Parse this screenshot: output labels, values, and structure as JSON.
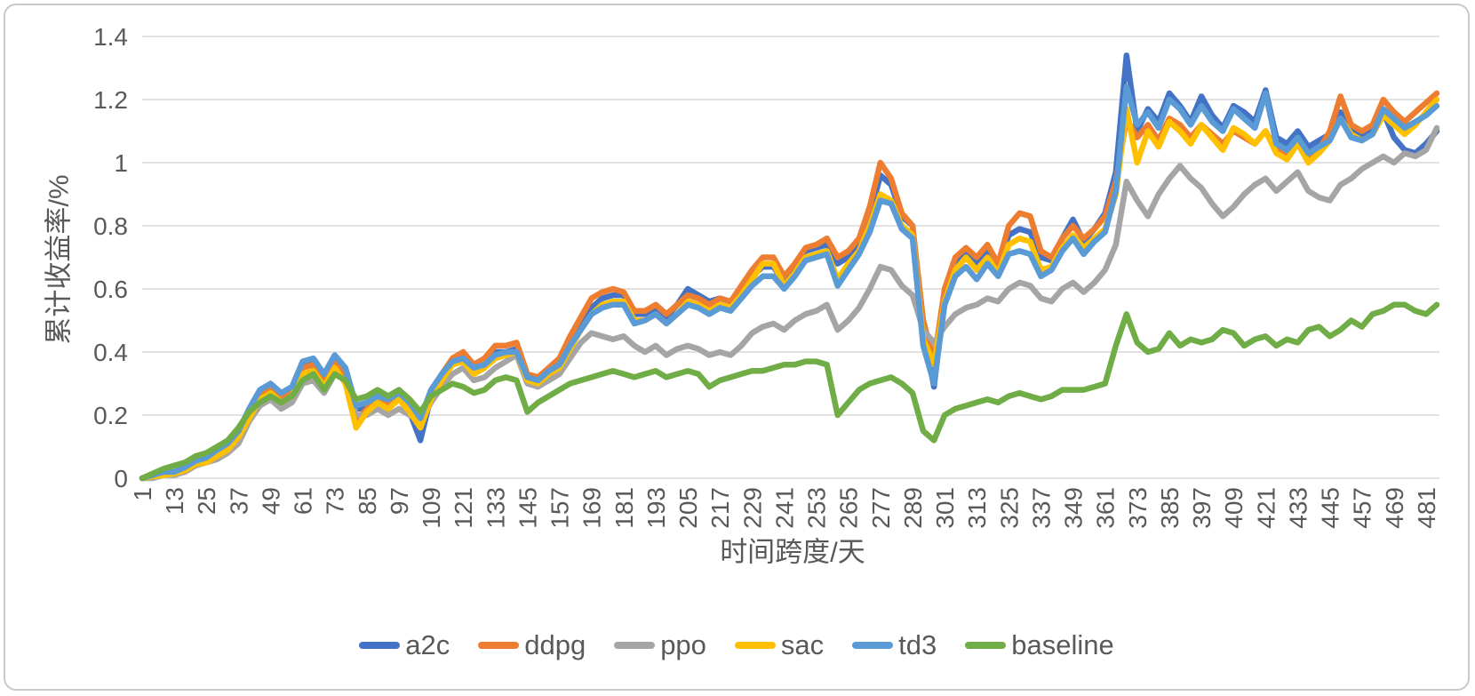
{
  "chart_data": {
    "type": "line",
    "title": "",
    "xlabel": "时间跨度/天",
    "ylabel": "累计收益率/%",
    "grid": true,
    "legend_position": "bottom",
    "text_color": "#595959",
    "grid_color": "#D9D9D9",
    "ylim": [
      0,
      1.4
    ],
    "xlim": [
      1,
      486
    ],
    "y_ticks": [
      {
        "value": 0,
        "label": "0"
      },
      {
        "value": 0.2,
        "label": "0.2"
      },
      {
        "value": 0.4,
        "label": "0.4"
      },
      {
        "value": 0.6,
        "label": "0.6"
      },
      {
        "value": 0.8,
        "label": "0.8"
      },
      {
        "value": 1,
        "label": "1"
      },
      {
        "value": 1.2,
        "label": "1.2"
      },
      {
        "value": 1.4,
        "label": "1.4"
      }
    ],
    "x_ticks": [
      1,
      13,
      25,
      37,
      49,
      61,
      73,
      85,
      97,
      109,
      121,
      133,
      145,
      157,
      169,
      181,
      193,
      205,
      217,
      229,
      241,
      253,
      265,
      277,
      289,
      301,
      313,
      325,
      337,
      349,
      361,
      373,
      385,
      397,
      409,
      421,
      433,
      445,
      457,
      469,
      481
    ],
    "x_start": 1,
    "x_step": 4,
    "series": [
      {
        "name": "a2c",
        "color": "#4472C4",
        "values": [
          0,
          0.005,
          0.01,
          0.015,
          0.03,
          0.045,
          0.05,
          0.07,
          0.1,
          0.13,
          0.2,
          0.27,
          0.28,
          0.25,
          0.28,
          0.36,
          0.37,
          0.31,
          0.38,
          0.34,
          0.22,
          0.22,
          0.25,
          0.23,
          0.26,
          0.21,
          0.12,
          0.26,
          0.32,
          0.37,
          0.38,
          0.34,
          0.36,
          0.4,
          0.4,
          0.41,
          0.32,
          0.31,
          0.34,
          0.36,
          0.42,
          0.48,
          0.54,
          0.57,
          0.58,
          0.58,
          0.52,
          0.52,
          0.54,
          0.51,
          0.55,
          0.6,
          0.58,
          0.56,
          0.57,
          0.56,
          0.6,
          0.64,
          0.67,
          0.67,
          0.62,
          0.67,
          0.72,
          0.73,
          0.74,
          0.68,
          0.7,
          0.74,
          0.83,
          0.96,
          0.93,
          0.83,
          0.8,
          0.47,
          0.29,
          0.57,
          0.68,
          0.71,
          0.68,
          0.72,
          0.67,
          0.77,
          0.79,
          0.78,
          0.7,
          0.69,
          0.76,
          0.82,
          0.75,
          0.79,
          0.84,
          0.97,
          1.34,
          1.1,
          1.17,
          1.13,
          1.22,
          1.18,
          1.13,
          1.21,
          1.15,
          1.11,
          1.18,
          1.16,
          1.13,
          1.23,
          1.08,
          1.06,
          1.1,
          1.05,
          1.07,
          1.09,
          1.16,
          1.1,
          1.08,
          1.1,
          1.16,
          1.08,
          1.04,
          1.03,
          1.06,
          1.1
        ]
      },
      {
        "name": "ddpg",
        "color": "#ED7D31",
        "values": [
          0,
          0.005,
          0.015,
          0.02,
          0.03,
          0.05,
          0.06,
          0.08,
          0.1,
          0.14,
          0.21,
          0.27,
          0.29,
          0.26,
          0.28,
          0.35,
          0.36,
          0.31,
          0.37,
          0.33,
          0.18,
          0.22,
          0.25,
          0.24,
          0.26,
          0.23,
          0.17,
          0.27,
          0.33,
          0.38,
          0.4,
          0.36,
          0.38,
          0.42,
          0.42,
          0.43,
          0.33,
          0.32,
          0.35,
          0.38,
          0.45,
          0.51,
          0.57,
          0.59,
          0.6,
          0.59,
          0.53,
          0.53,
          0.55,
          0.52,
          0.55,
          0.58,
          0.57,
          0.55,
          0.57,
          0.56,
          0.61,
          0.66,
          0.7,
          0.7,
          0.64,
          0.68,
          0.73,
          0.74,
          0.76,
          0.7,
          0.72,
          0.76,
          0.86,
          1,
          0.95,
          0.84,
          0.8,
          0.5,
          0.37,
          0.6,
          0.7,
          0.73,
          0.7,
          0.74,
          0.68,
          0.8,
          0.84,
          0.83,
          0.72,
          0.7,
          0.76,
          0.8,
          0.76,
          0.79,
          0.83,
          0.94,
          1.14,
          1.08,
          1.12,
          1.07,
          1.14,
          1.12,
          1.08,
          1.12,
          1.09,
          1.06,
          1.1,
          1.08,
          1.06,
          1.1,
          1.04,
          1.02,
          1.07,
          1.01,
          1.04,
          1.1,
          1.21,
          1.12,
          1.1,
          1.12,
          1.2,
          1.16,
          1.13,
          1.16,
          1.19,
          1.22
        ]
      },
      {
        "name": "ppo",
        "color": "#A5A5A5",
        "values": [
          0,
          0,
          0.01,
          0.01,
          0.02,
          0.04,
          0.05,
          0.06,
          0.08,
          0.11,
          0.18,
          0.23,
          0.25,
          0.22,
          0.24,
          0.3,
          0.31,
          0.27,
          0.33,
          0.31,
          0.2,
          0.2,
          0.22,
          0.2,
          0.22,
          0.2,
          0.18,
          0.24,
          0.29,
          0.33,
          0.35,
          0.31,
          0.32,
          0.35,
          0.37,
          0.39,
          0.3,
          0.29,
          0.31,
          0.33,
          0.38,
          0.43,
          0.46,
          0.45,
          0.44,
          0.45,
          0.42,
          0.4,
          0.42,
          0.39,
          0.41,
          0.42,
          0.41,
          0.39,
          0.4,
          0.39,
          0.42,
          0.46,
          0.48,
          0.49,
          0.47,
          0.5,
          0.52,
          0.53,
          0.55,
          0.47,
          0.5,
          0.54,
          0.6,
          0.67,
          0.66,
          0.61,
          0.58,
          0.47,
          0.43,
          0.48,
          0.52,
          0.54,
          0.55,
          0.57,
          0.56,
          0.6,
          0.62,
          0.61,
          0.57,
          0.56,
          0.6,
          0.62,
          0.59,
          0.62,
          0.66,
          0.74,
          0.94,
          0.88,
          0.83,
          0.9,
          0.95,
          0.99,
          0.95,
          0.92,
          0.87,
          0.83,
          0.86,
          0.9,
          0.93,
          0.95,
          0.91,
          0.94,
          0.97,
          0.91,
          0.89,
          0.88,
          0.93,
          0.95,
          0.98,
          1,
          1.02,
          1,
          1.03,
          1.02,
          1.04,
          1.11
        ]
      },
      {
        "name": "sac",
        "color": "#FFC000",
        "values": [
          0,
          0.005,
          0.01,
          0.015,
          0.025,
          0.045,
          0.05,
          0.07,
          0.09,
          0.13,
          0.19,
          0.25,
          0.27,
          0.24,
          0.26,
          0.33,
          0.34,
          0.29,
          0.35,
          0.3,
          0.16,
          0.21,
          0.24,
          0.22,
          0.25,
          0.21,
          0.16,
          0.25,
          0.31,
          0.36,
          0.37,
          0.33,
          0.35,
          0.38,
          0.39,
          0.4,
          0.31,
          0.3,
          0.33,
          0.35,
          0.41,
          0.47,
          0.52,
          0.55,
          0.56,
          0.56,
          0.5,
          0.5,
          0.52,
          0.49,
          0.52,
          0.56,
          0.55,
          0.53,
          0.55,
          0.54,
          0.58,
          0.63,
          0.68,
          0.68,
          0.61,
          0.65,
          0.7,
          0.71,
          0.72,
          0.63,
          0.68,
          0.72,
          0.8,
          0.9,
          0.88,
          0.8,
          0.77,
          0.44,
          0.36,
          0.56,
          0.66,
          0.7,
          0.66,
          0.7,
          0.65,
          0.74,
          0.76,
          0.75,
          0.66,
          0.67,
          0.73,
          0.77,
          0.73,
          0.76,
          0.79,
          0.9,
          1.17,
          1,
          1.1,
          1.05,
          1.13,
          1.1,
          1.06,
          1.12,
          1.08,
          1.04,
          1.11,
          1.09,
          1.06,
          1.1,
          1.03,
          1.01,
          1.06,
          1,
          1.03,
          1.07,
          1.14,
          1.09,
          1.07,
          1.09,
          1.15,
          1.12,
          1.09,
          1.12,
          1.16,
          1.2
        ]
      },
      {
        "name": "td3",
        "color": "#5B9BD5",
        "values": [
          0,
          0.01,
          0.02,
          0.02,
          0.035,
          0.055,
          0.065,
          0.09,
          0.11,
          0.15,
          0.22,
          0.28,
          0.3,
          0.27,
          0.29,
          0.37,
          0.38,
          0.33,
          0.39,
          0.35,
          0.23,
          0.24,
          0.26,
          0.25,
          0.27,
          0.24,
          0.19,
          0.28,
          0.33,
          0.37,
          0.38,
          0.35,
          0.36,
          0.39,
          0.4,
          0.4,
          0.32,
          0.31,
          0.34,
          0.36,
          0.42,
          0.47,
          0.52,
          0.54,
          0.55,
          0.55,
          0.49,
          0.5,
          0.52,
          0.49,
          0.52,
          0.55,
          0.54,
          0.52,
          0.54,
          0.53,
          0.57,
          0.61,
          0.64,
          0.64,
          0.6,
          0.64,
          0.69,
          0.7,
          0.71,
          0.61,
          0.66,
          0.71,
          0.78,
          0.88,
          0.87,
          0.79,
          0.76,
          0.42,
          0.3,
          0.55,
          0.64,
          0.67,
          0.63,
          0.68,
          0.64,
          0.71,
          0.72,
          0.71,
          0.64,
          0.66,
          0.72,
          0.76,
          0.71,
          0.75,
          0.78,
          0.91,
          1.24,
          1.12,
          1.16,
          1.11,
          1.2,
          1.17,
          1.12,
          1.18,
          1.13,
          1.1,
          1.17,
          1.14,
          1.11,
          1.22,
          1.06,
          1.04,
          1.08,
          1.03,
          1.05,
          1.07,
          1.14,
          1.08,
          1.07,
          1.09,
          1.17,
          1.14,
          1.11,
          1.13,
          1.15,
          1.18
        ]
      },
      {
        "name": "baseline",
        "color": "#70AD47",
        "values": [
          0,
          0.015,
          0.03,
          0.04,
          0.05,
          0.07,
          0.08,
          0.1,
          0.12,
          0.16,
          0.21,
          0.24,
          0.26,
          0.24,
          0.26,
          0.31,
          0.33,
          0.28,
          0.33,
          0.31,
          0.25,
          0.26,
          0.28,
          0.26,
          0.28,
          0.25,
          0.21,
          0.26,
          0.28,
          0.3,
          0.29,
          0.27,
          0.28,
          0.31,
          0.32,
          0.31,
          0.21,
          0.24,
          0.26,
          0.28,
          0.3,
          0.31,
          0.32,
          0.33,
          0.34,
          0.33,
          0.32,
          0.33,
          0.34,
          0.32,
          0.33,
          0.34,
          0.33,
          0.29,
          0.31,
          0.32,
          0.33,
          0.34,
          0.34,
          0.35,
          0.36,
          0.36,
          0.37,
          0.37,
          0.36,
          0.2,
          0.24,
          0.28,
          0.3,
          0.31,
          0.32,
          0.3,
          0.27,
          0.15,
          0.12,
          0.2,
          0.22,
          0.23,
          0.24,
          0.25,
          0.24,
          0.26,
          0.27,
          0.26,
          0.25,
          0.26,
          0.28,
          0.28,
          0.28,
          0.29,
          0.3,
          0.42,
          0.52,
          0.43,
          0.4,
          0.41,
          0.46,
          0.42,
          0.44,
          0.43,
          0.44,
          0.47,
          0.46,
          0.42,
          0.44,
          0.45,
          0.42,
          0.44,
          0.43,
          0.47,
          0.48,
          0.45,
          0.47,
          0.5,
          0.48,
          0.52,
          0.53,
          0.55,
          0.55,
          0.53,
          0.52,
          0.55
        ]
      }
    ]
  }
}
